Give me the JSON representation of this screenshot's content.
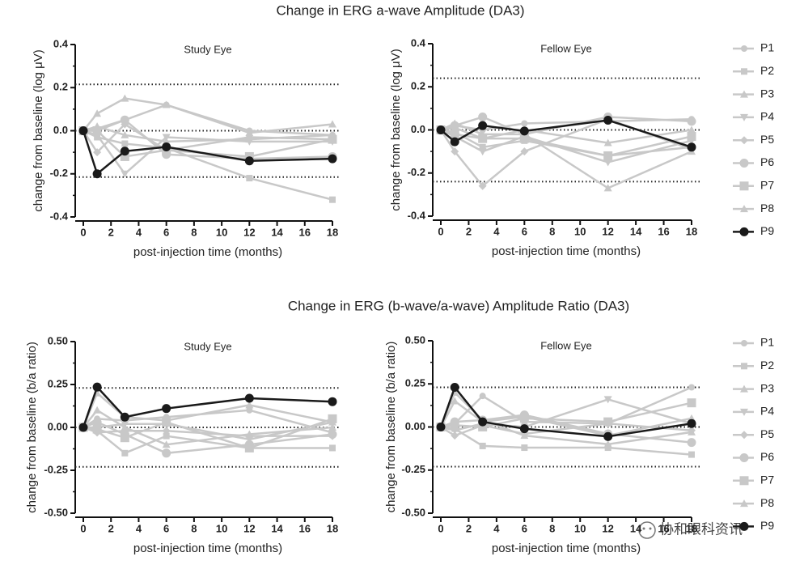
{
  "chart_data": [
    {
      "type": "line",
      "title": "Change in ERG a-wave Amplitude (DA3)",
      "subtitle": "Study Eye",
      "xlabel": "post-injection time (months)",
      "ylabel": "change from baseline (log μV)",
      "x": [
        0,
        1,
        3,
        6,
        12,
        18
      ],
      "xlim": [
        0,
        18
      ],
      "xticks": [
        0,
        2,
        4,
        6,
        8,
        10,
        12,
        14,
        16,
        18
      ],
      "ylim": [
        -0.4,
        0.4
      ],
      "yticks": [
        -0.4,
        -0.2,
        {
          "value": 0,
          "label": "0.0"
        },
        0.2,
        0.4
      ],
      "reference_lines": [
        0.215,
        0,
        -0.215
      ],
      "series": [
        {
          "name": "P1",
          "color": "#c8c8c8",
          "marker": "circle",
          "values": [
            0,
            0.01,
            0.05,
            0.12,
            0.0,
            -0.02
          ]
        },
        {
          "name": "P2",
          "color": "#c8c8c8",
          "marker": "square",
          "values": [
            0,
            -0.03,
            -0.06,
            -0.08,
            -0.22,
            -0.32
          ]
        },
        {
          "name": "P3",
          "color": "#c8c8c8",
          "marker": "triangle-up",
          "values": [
            0,
            0.08,
            0.15,
            0.12,
            -0.01,
            0.03
          ]
        },
        {
          "name": "P4",
          "color": "#c8c8c8",
          "marker": "triangle-down",
          "values": [
            0,
            -0.02,
            -0.2,
            -0.03,
            -0.05,
            -0.05
          ]
        },
        {
          "name": "P5",
          "color": "#c8c8c8",
          "marker": "diamond",
          "values": [
            0,
            -0.1,
            0.03,
            -0.09,
            -0.03,
            -0.04
          ]
        },
        {
          "name": "P6",
          "color": "#c8c8c8",
          "marker": "circle-large",
          "values": [
            0,
            0.0,
            0.05,
            -0.11,
            -0.13,
            -0.12
          ]
        },
        {
          "name": "P7",
          "color": "#c8c8c8",
          "marker": "square-large",
          "values": [
            0,
            0.0,
            -0.12,
            -0.09,
            -0.12,
            -0.04
          ]
        },
        {
          "name": "P8",
          "color": "#c8c8c8",
          "marker": "triangle-up",
          "values": [
            0,
            0.02,
            -0.02,
            -0.05,
            -0.04,
            -0.02
          ]
        },
        {
          "name": "P9",
          "color": "#1a1a1a",
          "marker": "circle-large",
          "values": [
            0,
            -0.2,
            -0.095,
            -0.075,
            -0.14,
            -0.13
          ]
        }
      ]
    },
    {
      "type": "line",
      "subtitle": "Fellow Eye",
      "xlabel": "post-injection time (months)",
      "ylabel": "change from baseline (log μV)",
      "legend": "right",
      "x": [
        0,
        1,
        3,
        6,
        12,
        18
      ],
      "xlim": [
        0,
        18
      ],
      "xticks": [
        0,
        2,
        4,
        6,
        8,
        10,
        12,
        14,
        16,
        18
      ],
      "ylim": [
        -0.4,
        0.4
      ],
      "yticks": [
        -0.4,
        -0.2,
        {
          "value": 0,
          "label": "0.0"
        },
        0.2,
        0.4
      ],
      "reference_lines": [
        0.24,
        0,
        -0.24
      ],
      "series": [
        {
          "name": "P1",
          "color": "#c8c8c8",
          "marker": "circle",
          "values": [
            0,
            0.02,
            0.0,
            0.03,
            0.04,
            0.05
          ]
        },
        {
          "name": "P2",
          "color": "#c8c8c8",
          "marker": "square",
          "values": [
            0,
            -0.01,
            -0.08,
            -0.05,
            -0.12,
            -0.08
          ]
        },
        {
          "name": "P3",
          "color": "#c8c8c8",
          "marker": "triangle-up",
          "values": [
            0,
            0.01,
            -0.04,
            0.0,
            -0.06,
            0.0
          ]
        },
        {
          "name": "P4",
          "color": "#c8c8c8",
          "marker": "triangle-down",
          "values": [
            0,
            -0.03,
            -0.1,
            -0.03,
            -0.15,
            -0.05
          ]
        },
        {
          "name": "P5",
          "color": "#c8c8c8",
          "marker": "diamond",
          "values": [
            0,
            -0.1,
            -0.26,
            -0.1,
            0.05,
            -0.09
          ]
        },
        {
          "name": "P6",
          "color": "#c8c8c8",
          "marker": "circle-large",
          "values": [
            0,
            0.02,
            0.06,
            -0.02,
            0.06,
            0.04
          ]
        },
        {
          "name": "P7",
          "color": "#c8c8c8",
          "marker": "square-large",
          "values": [
            0,
            -0.02,
            -0.04,
            -0.04,
            -0.12,
            -0.03
          ]
        },
        {
          "name": "P8",
          "color": "#c8c8c8",
          "marker": "triangle-up",
          "values": [
            0,
            0.03,
            -0.02,
            -0.02,
            -0.27,
            -0.1
          ]
        },
        {
          "name": "P9",
          "color": "#1a1a1a",
          "marker": "circle-large",
          "values": [
            0,
            -0.055,
            0.02,
            -0.005,
            0.045,
            -0.08
          ]
        }
      ]
    },
    {
      "type": "line",
      "title": "Change in ERG (b-wave/a-wave) Amplitude Ratio (DA3)",
      "subtitle": "Study Eye",
      "xlabel": "post-injection time (months)",
      "ylabel": "change from baseline (b/a ratio)",
      "x": [
        0,
        1,
        3,
        6,
        12,
        18
      ],
      "xlim": [
        0,
        18
      ],
      "xticks": [
        0,
        2,
        4,
        6,
        8,
        10,
        12,
        14,
        16,
        18
      ],
      "ylim": [
        -0.5,
        0.5
      ],
      "yticks": [
        {
          "value": -0.5,
          "label": "-0.50"
        },
        -0.25,
        {
          "value": 0,
          "label": "0.00"
        },
        0.25,
        {
          "value": 0.5,
          "label": "0.50"
        }
      ],
      "reference_lines": [
        0.23,
        0,
        -0.23
      ],
      "series": [
        {
          "name": "P1",
          "color": "#c8c8c8",
          "marker": "circle",
          "values": [
            0,
            0.05,
            0.04,
            0.06,
            0.1,
            -0.03
          ]
        },
        {
          "name": "P2",
          "color": "#c8c8c8",
          "marker": "square",
          "values": [
            0,
            -0.02,
            -0.15,
            -0.05,
            -0.12,
            -0.12
          ]
        },
        {
          "name": "P3",
          "color": "#c8c8c8",
          "marker": "triangle-up",
          "values": [
            0,
            0.2,
            0.06,
            0.04,
            0.13,
            0.03
          ]
        },
        {
          "name": "P4",
          "color": "#c8c8c8",
          "marker": "triangle-down",
          "values": [
            0,
            0.0,
            0.02,
            0.02,
            -0.07,
            0.03
          ]
        },
        {
          "name": "P5",
          "color": "#c8c8c8",
          "marker": "diamond",
          "values": [
            0,
            -0.03,
            -0.02,
            -0.02,
            -0.05,
            -0.05
          ]
        },
        {
          "name": "P6",
          "color": "#c8c8c8",
          "marker": "circle-large",
          "values": [
            0,
            0.03,
            -0.04,
            -0.15,
            -0.1,
            -0.04
          ]
        },
        {
          "name": "P7",
          "color": "#c8c8c8",
          "marker": "square-large",
          "values": [
            0,
            -0.01,
            -0.06,
            0.03,
            -0.12,
            0.05
          ]
        },
        {
          "name": "P8",
          "color": "#c8c8c8",
          "marker": "triangle-up",
          "values": [
            0,
            0.1,
            0.0,
            -0.1,
            -0.04,
            0.0
          ]
        },
        {
          "name": "P9",
          "color": "#1a1a1a",
          "marker": "circle-large",
          "values": [
            0,
            0.235,
            0.06,
            0.11,
            0.17,
            0.15
          ]
        }
      ]
    },
    {
      "type": "line",
      "subtitle": "Fellow Eye",
      "xlabel": "post-injection time (months)",
      "ylabel": "change from baseline (b/a ratio)",
      "legend": "right",
      "x": [
        0,
        1,
        3,
        6,
        12,
        18
      ],
      "xlim": [
        0,
        18
      ],
      "xticks": [
        0,
        2,
        4,
        6,
        8,
        10,
        12,
        14,
        16,
        18
      ],
      "ylim": [
        -0.5,
        0.5
      ],
      "yticks": [
        {
          "value": -0.5,
          "label": "-0.50"
        },
        -0.25,
        {
          "value": 0,
          "label": "0.00"
        },
        0.25,
        {
          "value": 0.5,
          "label": "0.50"
        }
      ],
      "reference_lines": [
        0.23,
        0,
        -0.23
      ],
      "series": [
        {
          "name": "P1",
          "color": "#c8c8c8",
          "marker": "circle",
          "values": [
            0,
            0.02,
            0.18,
            0.03,
            0.02,
            0.23
          ]
        },
        {
          "name": "P2",
          "color": "#c8c8c8",
          "marker": "square",
          "values": [
            0,
            -0.01,
            -0.11,
            -0.12,
            -0.12,
            -0.16
          ]
        },
        {
          "name": "P3",
          "color": "#c8c8c8",
          "marker": "triangle-up",
          "values": [
            0,
            0.15,
            0.03,
            0.06,
            -0.05,
            0.05
          ]
        },
        {
          "name": "P4",
          "color": "#c8c8c8",
          "marker": "triangle-down",
          "values": [
            0,
            -0.02,
            0.02,
            0.0,
            0.16,
            0.02
          ]
        },
        {
          "name": "P5",
          "color": "#c8c8c8",
          "marker": "diamond",
          "values": [
            0,
            -0.05,
            0.01,
            -0.04,
            0.02,
            -0.02
          ]
        },
        {
          "name": "P6",
          "color": "#c8c8c8",
          "marker": "circle-large",
          "values": [
            0,
            0.03,
            0.04,
            0.07,
            -0.04,
            -0.09
          ]
        },
        {
          "name": "P7",
          "color": "#c8c8c8",
          "marker": "square-large",
          "values": [
            0,
            0.01,
            0.0,
            0.05,
            0.03,
            0.14
          ]
        },
        {
          "name": "P8",
          "color": "#c8c8c8",
          "marker": "triangle-up",
          "values": [
            0,
            0.2,
            0.04,
            -0.05,
            -0.1,
            -0.03
          ]
        },
        {
          "name": "P9",
          "color": "#1a1a1a",
          "marker": "circle-large",
          "values": [
            0,
            0.23,
            0.03,
            -0.01,
            -0.055,
            0.02
          ]
        }
      ]
    }
  ],
  "watermark": "协和眼科资讯"
}
